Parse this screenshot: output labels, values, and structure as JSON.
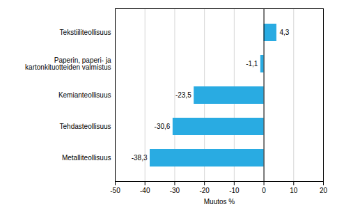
{
  "chart_data": {
    "type": "bar",
    "orientation": "horizontal",
    "categories": [
      "Metalliteollisuus",
      "Tehdasteollisuus",
      "Kemianteollisuus",
      "Paperin, paperi- ja kartonkituotteiden valmistus",
      "Tekstiiliteollisuus"
    ],
    "values": [
      -38.3,
      -30.6,
      -23.5,
      -1.1,
      4.3
    ],
    "value_labels": [
      "-38,3",
      "-30,6",
      "-23,5",
      "-1,1",
      "4,3"
    ],
    "data_labels": true,
    "color": "#29abe2",
    "xlabel": "Muutos %",
    "xlim": [
      -50,
      20
    ],
    "xticks": [
      -50,
      -40,
      -30,
      -20,
      -10,
      0,
      10,
      20
    ],
    "grid": true
  }
}
